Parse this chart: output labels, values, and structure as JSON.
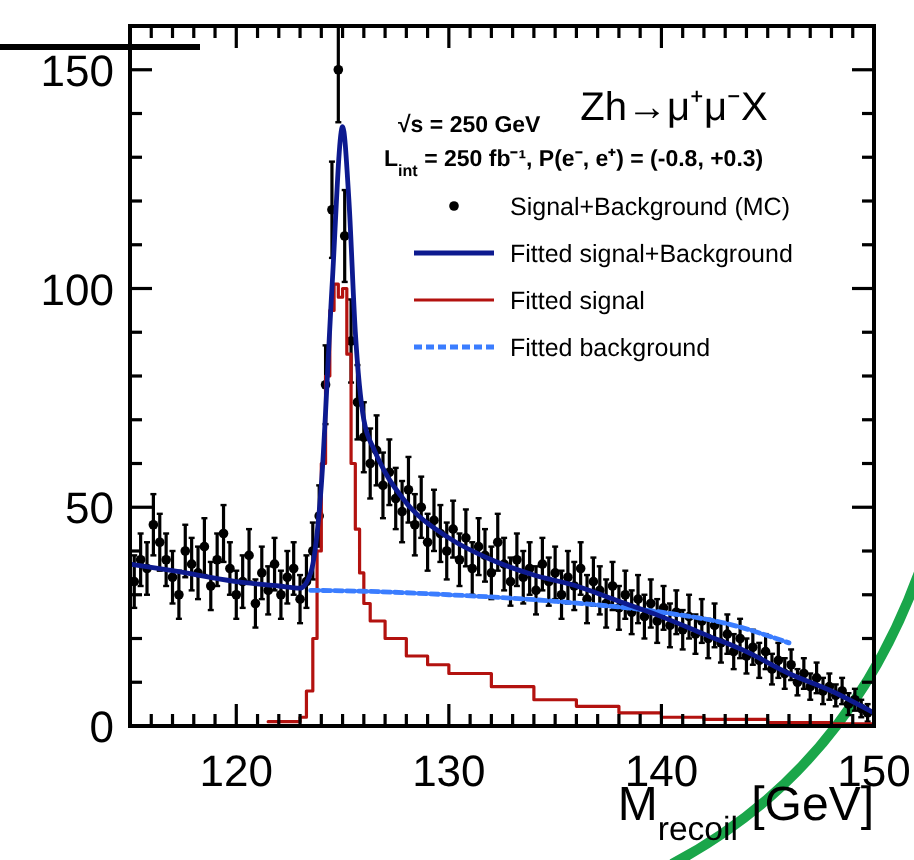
{
  "chart_data": {
    "type": "scatter",
    "title": "Zh→μ⁺μ⁻X",
    "xlabel": "M$_{recoil}$ [GeV]",
    "annotations": [
      "√s = 250 GeV",
      "L$_{int}$ = 250 fb⁻¹, P(e⁻, e⁺) = (-0.8, +0.3)"
    ],
    "xlim": [
      115,
      150
    ],
    "ylim": [
      0,
      160
    ],
    "xticks": [
      {
        "value": 116,
        "label": null
      },
      {
        "value": 117,
        "label": null
      },
      {
        "value": 118,
        "label": null
      },
      {
        "value": 119,
        "label": null
      },
      120,
      {
        "value": 121,
        "label": null
      },
      {
        "value": 122,
        "label": null
      },
      {
        "value": 123,
        "label": null
      },
      {
        "value": 124,
        "label": null
      },
      {
        "value": 125,
        "label": null
      },
      {
        "value": 126,
        "label": null
      },
      {
        "value": 127,
        "label": null
      },
      {
        "value": 128,
        "label": null
      },
      {
        "value": 129,
        "label": null
      },
      130,
      {
        "value": 131,
        "label": null
      },
      {
        "value": 132,
        "label": null
      },
      {
        "value": 133,
        "label": null
      },
      {
        "value": 134,
        "label": null
      },
      {
        "value": 135,
        "label": null
      },
      {
        "value": 136,
        "label": null
      },
      {
        "value": 137,
        "label": null
      },
      {
        "value": 138,
        "label": null
      },
      {
        "value": 139,
        "label": null
      },
      140,
      {
        "value": 141,
        "label": null
      },
      {
        "value": 142,
        "label": null
      },
      {
        "value": 143,
        "label": null
      },
      {
        "value": 144,
        "label": null
      },
      {
        "value": 145,
        "label": null
      },
      {
        "value": 146,
        "label": null
      },
      {
        "value": 147,
        "label": null
      },
      {
        "value": 148,
        "label": null
      },
      {
        "value": 149,
        "label": null
      },
      150
    ],
    "yticks": [
      0,
      {
        "value": 10,
        "label": null
      },
      {
        "value": 20,
        "label": null
      },
      {
        "value": 30,
        "label": null
      },
      {
        "value": 40,
        "label": null
      },
      50,
      {
        "value": 60,
        "label": null
      },
      {
        "value": 70,
        "label": null
      },
      {
        "value": 80,
        "label": null
      },
      {
        "value": 90,
        "label": null
      },
      100,
      {
        "value": 110,
        "label": null
      },
      {
        "value": 120,
        "label": null
      },
      {
        "value": 130,
        "label": null
      },
      {
        "value": 140,
        "label": null
      },
      150,
      {
        "value": 160,
        "label": null
      }
    ],
    "legend": "top right",
    "series": [
      {
        "name": "Signal+Background (MC)",
        "type": "scatter",
        "marker": "circle",
        "color": "#000000",
        "x": [
          115.2,
          115.5,
          115.8,
          116.1,
          116.4,
          116.7,
          117.0,
          117.3,
          117.6,
          117.9,
          118.2,
          118.5,
          118.8,
          119.1,
          119.4,
          119.7,
          120.0,
          120.3,
          120.6,
          120.9,
          121.2,
          121.5,
          121.8,
          122.1,
          122.4,
          122.7,
          123.0,
          123.3,
          123.6,
          123.9,
          124.2,
          124.5,
          124.8,
          125.1,
          125.4,
          125.7,
          126.0,
          126.3,
          126.6,
          126.9,
          127.2,
          127.5,
          127.8,
          128.1,
          128.4,
          128.7,
          129.0,
          129.3,
          129.6,
          129.9,
          130.2,
          130.5,
          130.8,
          131.1,
          131.4,
          131.7,
          132.0,
          132.3,
          132.6,
          132.9,
          133.2,
          133.5,
          133.8,
          134.1,
          134.4,
          134.7,
          135.0,
          135.3,
          135.6,
          135.9,
          136.2,
          136.5,
          136.8,
          137.1,
          137.4,
          137.7,
          138.0,
          138.3,
          138.6,
          138.9,
          139.2,
          139.5,
          139.8,
          140.1,
          140.4,
          140.7,
          141.0,
          141.3,
          141.6,
          141.9,
          142.2,
          142.5,
          142.8,
          143.1,
          143.4,
          143.7,
          144.0,
          144.3,
          144.6,
          144.9,
          145.2,
          145.5,
          145.8,
          146.1,
          146.4,
          146.7,
          147.0,
          147.3,
          147.6,
          147.9,
          148.2,
          148.5,
          148.8,
          149.1,
          149.4,
          149.7
        ],
        "values": [
          33,
          38,
          36,
          46,
          42,
          38,
          34,
          30,
          40,
          37,
          35,
          41,
          32,
          38,
          44,
          36,
          30,
          33,
          39,
          28,
          35,
          31,
          37,
          30,
          34,
          36,
          29,
          33,
          40,
          48,
          78,
          118,
          150,
          112,
          88,
          74,
          66,
          60,
          63,
          55,
          58,
          52,
          49,
          54,
          46,
          50,
          42,
          47,
          44,
          40,
          45,
          38,
          43,
          36,
          41,
          39,
          35,
          42,
          37,
          33,
          38,
          34,
          36,
          31,
          37,
          33,
          35,
          30,
          34,
          32,
          36,
          29,
          33,
          31,
          28,
          32,
          27,
          30,
          26,
          29,
          25,
          28,
          24,
          27,
          23,
          26,
          22,
          25,
          21,
          24,
          20,
          23,
          19,
          21,
          17,
          20,
          16,
          18,
          15,
          17,
          13,
          15,
          12,
          14,
          10,
          12,
          9,
          11,
          8,
          9,
          7,
          8,
          5,
          6,
          4,
          3
        ],
        "errors": [
          6,
          6,
          6,
          7,
          6.5,
          6,
          6,
          5.5,
          6,
          6,
          6,
          6.5,
          5.5,
          6,
          6.5,
          6,
          5.5,
          6,
          6,
          5.5,
          6,
          5.5,
          6,
          5.5,
          6,
          6,
          5.5,
          6,
          6.5,
          7,
          9,
          11,
          12,
          10.5,
          9.5,
          8.5,
          8,
          8,
          8,
          7.5,
          7.5,
          7,
          7,
          7.5,
          7,
          7,
          6.5,
          7,
          6.5,
          6.5,
          6.5,
          6,
          6.5,
          6,
          6.5,
          6,
          6,
          6.5,
          6,
          5.5,
          6,
          6,
          6,
          5.5,
          6,
          5.5,
          6,
          5.5,
          6,
          5.5,
          6,
          5.5,
          5.5,
          5.5,
          5.5,
          5.5,
          5,
          5.5,
          5,
          5.5,
          5,
          5.5,
          5,
          5,
          5,
          5,
          4.5,
          5,
          4.5,
          5,
          4.5,
          5,
          4.5,
          4.5,
          4,
          4.5,
          4,
          4,
          4,
          4,
          3.5,
          4,
          3.5,
          3.5,
          3,
          3.5,
          3,
          3.5,
          3,
          3,
          2.5,
          3,
          2.5,
          2.5,
          2,
          2
        ]
      },
      {
        "name": "Fitted signal",
        "type": "step",
        "color": "#b3120f",
        "x": [
          121.5,
          122.5,
          123.0,
          123.3,
          123.6,
          123.8,
          124.0,
          124.2,
          124.4,
          124.6,
          124.8,
          125.0,
          125.2,
          125.4,
          125.6,
          125.8,
          126.0,
          126.3,
          127,
          128,
          129,
          130,
          132,
          134,
          136,
          138,
          140,
          142,
          145,
          148,
          150
        ],
        "values": [
          1,
          1,
          2,
          8,
          20,
          40,
          60,
          80,
          95,
          101,
          98,
          100,
          85,
          60,
          45,
          35,
          28,
          24,
          20,
          16,
          14,
          12,
          9,
          6,
          4.5,
          3,
          2,
          1.5,
          0.8,
          0.5,
          0.3
        ]
      },
      {
        "name": "Fitted background",
        "type": "line",
        "line_style": "dashed",
        "color": "#3b7dff",
        "x": [
          123.5,
          126,
          130,
          135,
          140,
          143,
          146
        ],
        "values": [
          31,
          30.8,
          30,
          28.5,
          26,
          23.5,
          19
        ]
      },
      {
        "name": "Fitted signal+Background",
        "type": "line",
        "color": "#0d1a8f",
        "x": [
          115,
          117,
          120,
          122,
          123,
          123.5,
          124,
          124.5,
          125,
          125.3,
          125.6,
          126,
          126.5,
          127,
          128,
          130,
          132,
          134,
          136,
          138,
          140,
          142,
          144,
          146,
          148,
          150
        ],
        "values": [
          37,
          35.5,
          33,
          32,
          31.5,
          35,
          55,
          100,
          137,
          120,
          90,
          70,
          63,
          58,
          51,
          43,
          38,
          34.5,
          32,
          28.5,
          25,
          21,
          17,
          12,
          8,
          3
        ]
      }
    ]
  }
}
